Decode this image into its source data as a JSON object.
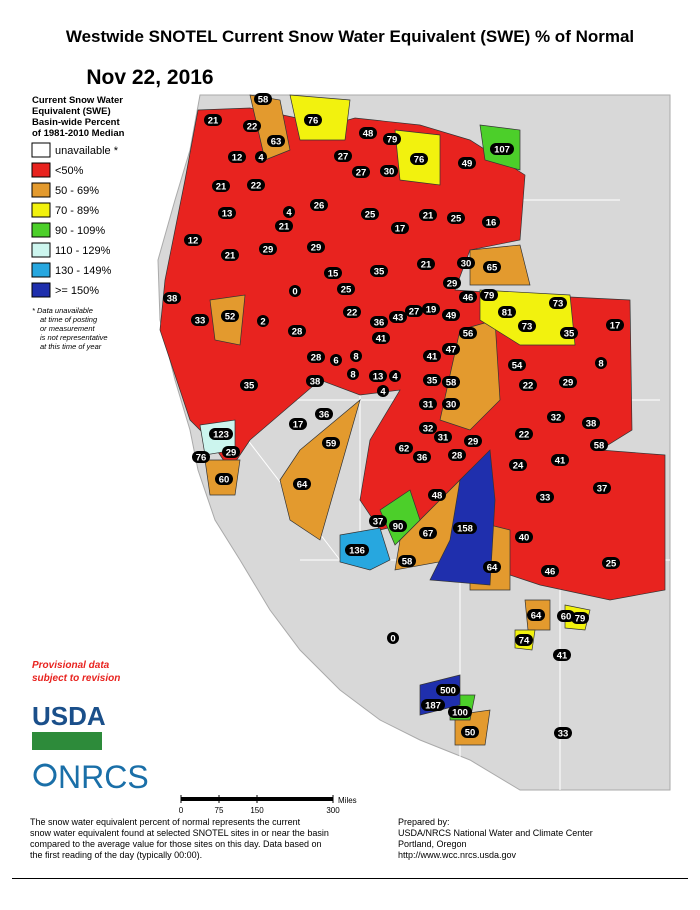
{
  "title": "Westwide SNOTEL Current Snow Water Equivalent (SWE) % of Normal",
  "date": "Nov 22, 2016",
  "legend": {
    "title_lines": [
      "Current Snow Water",
      "Equivalent (SWE)",
      "Basin-wide Percent",
      "of 1981-2010 Median"
    ],
    "items": [
      {
        "label": "unavailable *",
        "color": "#ffffff"
      },
      {
        "label": "<50%",
        "color": "#e8231f"
      },
      {
        "label": "50 - 69%",
        "color": "#e39a2e"
      },
      {
        "label": "70 - 89%",
        "color": "#f2f20e"
      },
      {
        "label": "90 - 109%",
        "color": "#4ccf2a"
      },
      {
        "label": "110 - 129%",
        "color": "#ccf5ee"
      },
      {
        "label": "130 - 149%",
        "color": "#27a7df"
      },
      {
        "label": ">= 150%",
        "color": "#1f2fad"
      }
    ],
    "note_lines": [
      "*  Data unavailable",
      "at time of posting",
      "or measurement",
      "is not representative",
      "at this time of year"
    ]
  },
  "provisional_lines": [
    "Provisional data",
    "subject to revision"
  ],
  "logos": [
    "USDA",
    "NRCS"
  ],
  "scale": {
    "ticks": [
      0,
      75,
      150,
      300
    ],
    "unit": "Miles"
  },
  "footer_left": [
    "The snow water equivalent percent of normal represents the current",
    "snow water equivalent found at selected SNOTEL sites in or near the basin",
    "compared to the average value for those sites on this day. Data based on",
    "the first reading of the day (typically 00:00)."
  ],
  "footer_right": [
    "Prepared by:",
    "USDA/NRCS National Water and Climate Center",
    "Portland, Oregon",
    "http://www.wcc.nrcs.usda.gov"
  ],
  "basins": [
    21,
    58,
    76,
    22,
    63,
    48,
    79,
    107,
    12,
    4,
    27,
    76,
    49,
    21,
    22,
    27,
    30,
    26,
    13,
    25,
    21,
    25,
    16,
    4,
    21,
    12,
    21,
    29,
    29,
    17,
    21,
    30,
    65,
    15,
    35,
    29,
    0,
    25,
    46,
    79,
    73,
    81,
    38,
    33,
    52,
    2,
    28,
    22,
    36,
    43,
    27,
    19,
    49,
    56,
    73,
    17,
    41,
    35,
    47,
    28,
    6,
    8,
    41,
    54,
    8,
    13,
    4,
    8,
    35,
    38,
    4,
    35,
    58,
    22,
    29,
    31,
    30,
    36,
    32,
    38,
    17,
    32,
    31,
    29,
    22,
    123,
    58,
    59,
    41,
    62,
    36,
    28,
    29,
    76,
    24,
    37,
    60,
    64,
    33,
    48,
    37,
    90,
    158,
    67,
    40,
    136,
    58,
    64,
    46,
    25,
    64,
    60,
    79,
    74,
    0,
    41,
    500,
    187,
    100,
    50,
    33
  ]
}
